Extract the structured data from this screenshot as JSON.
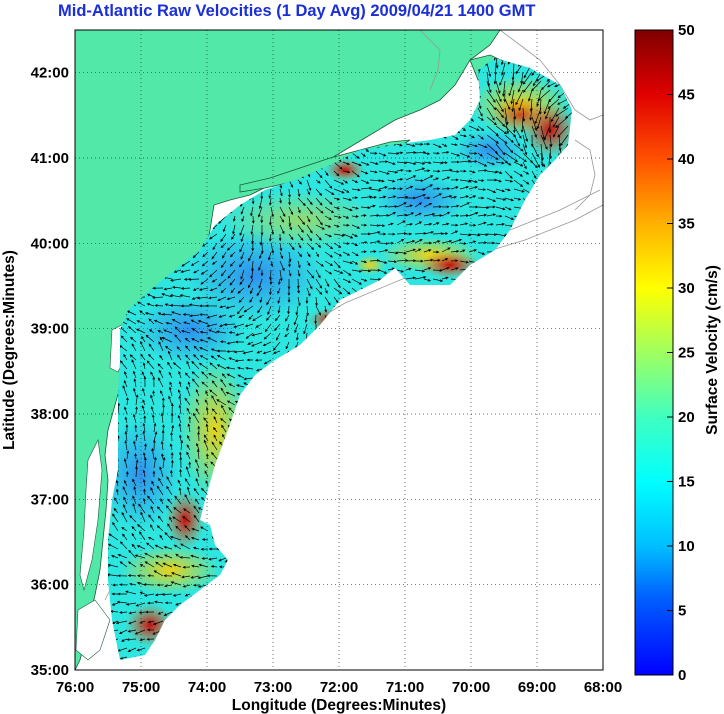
{
  "title": "Mid-Atlantic Raw Velocities (1 Day Avg) 2009/04/21 1400 GMT",
  "xlabel": "Longitude (Degrees:Minutes)",
  "ylabel": "Latitude (Degrees:Minutes)",
  "x_ticks": [
    "76:00",
    "75:00",
    "74:00",
    "73:00",
    "72:00",
    "71:00",
    "70:00",
    "69:00",
    "68:00"
  ],
  "y_ticks": [
    "35:00",
    "36:00",
    "37:00",
    "38:00",
    "39:00",
    "40:00",
    "41:00",
    "42:00"
  ],
  "colorbar": {
    "label": "Surface Velocity (cm/s)",
    "ticks": [
      "0",
      "5",
      "10",
      "15",
      "20",
      "25",
      "30",
      "35",
      "40",
      "45",
      "50"
    ],
    "min": 0,
    "max": 50
  },
  "colors": {
    "title": "#1a2fd6",
    "land": "#52e8a8",
    "grid": "#222222"
  },
  "map": {
    "lon_range": [
      -76,
      -68
    ],
    "lat_range": [
      35,
      42.5
    ],
    "grid": "dotted"
  }
}
